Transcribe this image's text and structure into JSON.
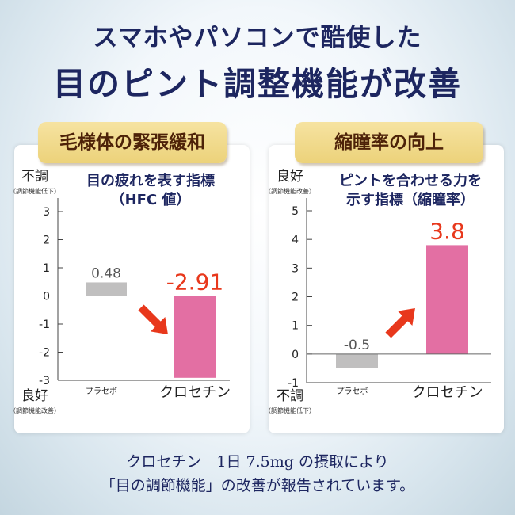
{
  "header": {
    "line1": "スマホやパソコンで酷使した",
    "line2": "目のピント調整機能が改善"
  },
  "chart_data": [
    {
      "type": "bar",
      "title": "毛様体の緊張緩和",
      "subtitle": "目の疲れを表す指標",
      "subtitle2": "（HFC 値）",
      "y_top_label": "不調",
      "y_top_sub": "（調節機能低下）",
      "y_bottom_label": "良好",
      "y_bottom_sub": "（調節機能改善）",
      "categories": [
        "プラセボ",
        "クロセチン"
      ],
      "values": [
        0.48,
        -2.91
      ],
      "data_labels": [
        "0.48",
        "-2.91"
      ],
      "ylim": [
        -3,
        3
      ],
      "yticks": [
        "3",
        "2",
        "1",
        "0",
        "-1",
        "-2",
        "-3"
      ],
      "colors": [
        "#c0bfbf",
        "#e36fa3"
      ],
      "label_colors": [
        "#555555",
        "#e8381c"
      ],
      "arrow": "down"
    },
    {
      "type": "bar",
      "title": "縮瞳率の向上",
      "subtitle": "ピントを合わせる力を",
      "subtitle2": "示す指標（縮瞳率）",
      "y_top_label": "良好",
      "y_top_sub": "（調節機能改善）",
      "y_bottom_label": "不調",
      "y_bottom_sub": "（調節機能低下）",
      "categories": [
        "プラセボ",
        "クロセチン"
      ],
      "values": [
        -0.5,
        3.8
      ],
      "data_labels": [
        "-0.5",
        "3.8"
      ],
      "ylim": [
        -1,
        5
      ],
      "yticks": [
        "5",
        "4",
        "3",
        "2",
        "1",
        "0",
        "-1"
      ],
      "colors": [
        "#c0bfbf",
        "#e36fa3"
      ],
      "label_colors": [
        "#555555",
        "#e8381c"
      ],
      "arrow": "up"
    }
  ],
  "footer": {
    "line1": "クロセチン　1日 7.5mg の摂取により",
    "line2": "「目の調節機能」の改善が報告されています。"
  },
  "colors": {
    "navy": "#1d2660",
    "arrow": "#e8381c"
  }
}
